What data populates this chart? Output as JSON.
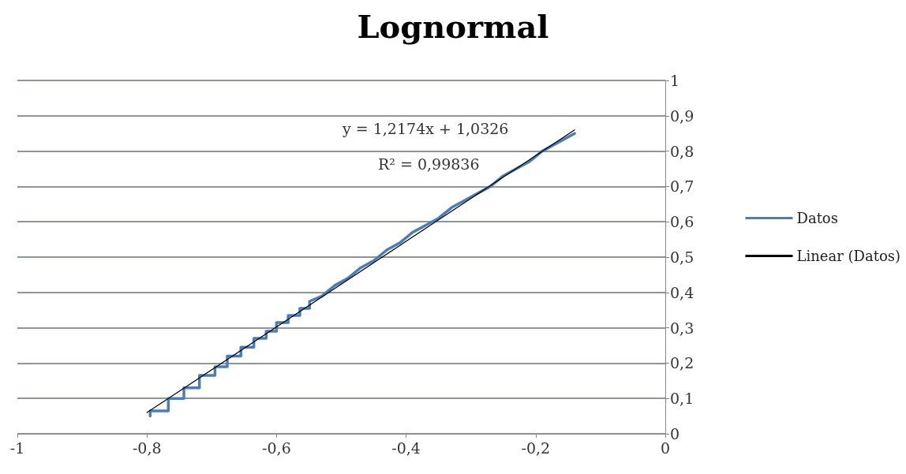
{
  "chart_data": {
    "type": "line",
    "title": "Lognormal",
    "legend": "right",
    "grid": "y",
    "marker": "none",
    "line_style": "solid",
    "xlim": [
      -1,
      0
    ],
    "xticks": [
      -1,
      {
        "value": -0.8,
        "label": "-0,8"
      },
      {
        "value": -0.6,
        "label": "-0,6"
      },
      {
        "value": -0.4,
        "label": "-0,4"
      },
      {
        "value": -0.2,
        "label": "-0,2"
      },
      0
    ],
    "ylim": [
      0,
      1
    ],
    "yticks": [
      0,
      {
        "value": 0.1,
        "label": "0,1"
      },
      {
        "value": 0.2,
        "label": "0,2"
      },
      {
        "value": 0.3,
        "label": "0,3"
      },
      {
        "value": 0.4,
        "label": "0,4"
      },
      {
        "value": 0.5,
        "label": "0,5"
      },
      {
        "value": 0.6,
        "label": "0,6"
      },
      {
        "value": 0.7,
        "label": "0,7"
      },
      {
        "value": 0.8,
        "label": "0,8"
      },
      {
        "value": 0.9,
        "label": "0,9"
      },
      1
    ],
    "annotations": [
      "y = 1,2174x + 1,0326",
      "R² = 0,99836"
    ],
    "series": [
      {
        "name": "Datos",
        "color": "#4a7ebb",
        "x": [
          -0.795,
          -0.795,
          -0.767,
          -0.767,
          -0.743,
          -0.743,
          -0.719,
          -0.719,
          -0.695,
          -0.695,
          -0.676,
          -0.676,
          -0.655,
          -0.655,
          -0.635,
          -0.635,
          -0.616,
          -0.616,
          -0.6,
          -0.6,
          -0.582,
          -0.582,
          -0.564,
          -0.564,
          -0.549,
          -0.549,
          -0.53,
          -0.51,
          -0.49,
          -0.47,
          -0.45,
          -0.43,
          -0.41,
          -0.39,
          -0.37,
          -0.35,
          -0.33,
          -0.31,
          -0.29,
          -0.27,
          -0.25,
          -0.23,
          -0.21,
          -0.19,
          -0.17,
          -0.14
        ],
        "values": [
          0.05,
          0.065,
          0.065,
          0.1,
          0.1,
          0.13,
          0.13,
          0.165,
          0.165,
          0.19,
          0.19,
          0.22,
          0.22,
          0.245,
          0.245,
          0.27,
          0.27,
          0.29,
          0.29,
          0.315,
          0.315,
          0.335,
          0.335,
          0.355,
          0.355,
          0.375,
          0.39,
          0.42,
          0.44,
          0.47,
          0.49,
          0.52,
          0.54,
          0.57,
          0.59,
          0.61,
          0.64,
          0.66,
          0.68,
          0.7,
          0.73,
          0.75,
          0.77,
          0.8,
          0.82,
          0.85
        ]
      },
      {
        "name": "Linear (Datos)",
        "color": "#000000",
        "x": [
          -0.8,
          -0.14
        ],
        "values": [
          0.06,
          0.86
        ]
      }
    ]
  }
}
